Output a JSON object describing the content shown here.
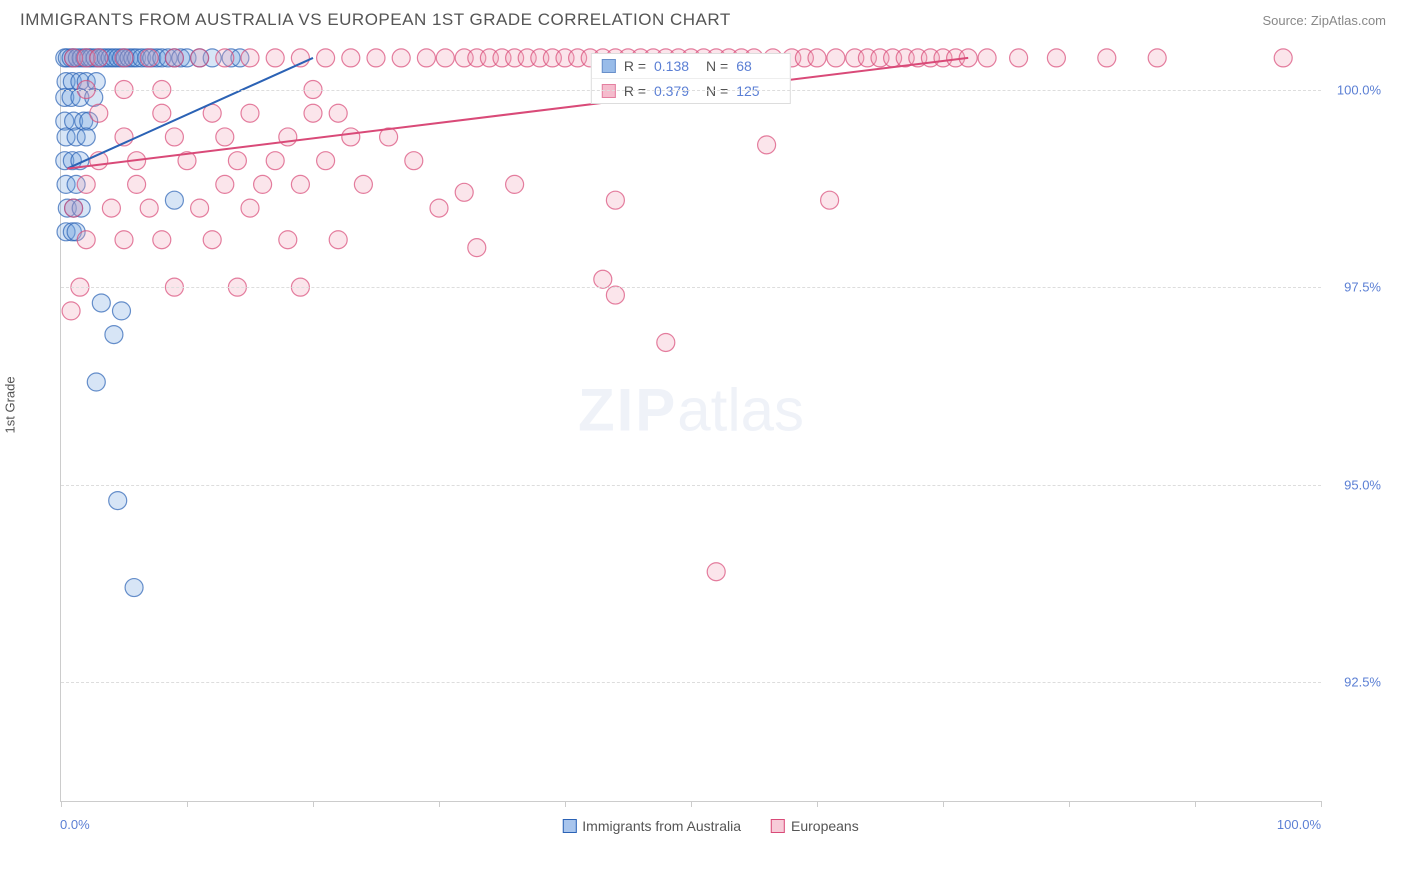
{
  "header": {
    "title": "IMMIGRANTS FROM AUSTRALIA VS EUROPEAN 1ST GRADE CORRELATION CHART",
    "source": "Source: ZipAtlas.com"
  },
  "watermark": {
    "zip": "ZIP",
    "atlas": "atlas"
  },
  "chart": {
    "type": "scatter",
    "ylabel": "1st Grade",
    "background_color": "#ffffff",
    "grid_color": "#dddddd",
    "axis_color": "#cccccc",
    "xlim": [
      0,
      100
    ],
    "ylim": [
      91.0,
      100.5
    ],
    "xtick_positions": [
      0,
      10,
      20,
      30,
      40,
      50,
      60,
      70,
      80,
      90,
      100
    ],
    "xlabel_min": "0.0%",
    "xlabel_max": "100.0%",
    "yticks": [
      {
        "v": 92.5,
        "label": "92.5%"
      },
      {
        "v": 95.0,
        "label": "95.0%"
      },
      {
        "v": 97.5,
        "label": "97.5%"
      },
      {
        "v": 100.0,
        "label": "100.0%"
      }
    ],
    "marker_radius": 9,
    "marker_opacity": 0.28,
    "marker_stroke_width": 1.2,
    "trend_line_width": 2,
    "series": [
      {
        "name": "Immigrants from Australia",
        "fill": "#6fa0e0",
        "stroke": "#2b62b5",
        "R": "0.138",
        "N": "68",
        "trend": {
          "x1": 0.5,
          "y1": 99.0,
          "x2": 20,
          "y2": 100.4
        },
        "points": [
          [
            0.3,
            100.4
          ],
          [
            0.5,
            100.4
          ],
          [
            0.8,
            100.4
          ],
          [
            1.0,
            100.4
          ],
          [
            1.3,
            100.4
          ],
          [
            1.6,
            100.4
          ],
          [
            1.9,
            100.4
          ],
          [
            2.2,
            100.4
          ],
          [
            2.4,
            100.4
          ],
          [
            2.7,
            100.4
          ],
          [
            3.0,
            100.4
          ],
          [
            3.3,
            100.4
          ],
          [
            3.6,
            100.4
          ],
          [
            3.9,
            100.4
          ],
          [
            4.2,
            100.4
          ],
          [
            4.5,
            100.4
          ],
          [
            4.8,
            100.4
          ],
          [
            5.1,
            100.4
          ],
          [
            5.4,
            100.4
          ],
          [
            5.7,
            100.4
          ],
          [
            6.0,
            100.4
          ],
          [
            6.4,
            100.4
          ],
          [
            6.8,
            100.4
          ],
          [
            7.2,
            100.4
          ],
          [
            7.6,
            100.4
          ],
          [
            8.0,
            100.4
          ],
          [
            8.5,
            100.4
          ],
          [
            9.0,
            100.4
          ],
          [
            9.5,
            100.4
          ],
          [
            10.0,
            100.4
          ],
          [
            11.0,
            100.4
          ],
          [
            12.0,
            100.4
          ],
          [
            13.5,
            100.4
          ],
          [
            14.2,
            100.4
          ],
          [
            0.4,
            100.1
          ],
          [
            0.9,
            100.1
          ],
          [
            1.5,
            100.1
          ],
          [
            2.0,
            100.1
          ],
          [
            2.8,
            100.1
          ],
          [
            0.3,
            99.9
          ],
          [
            0.8,
            99.9
          ],
          [
            1.5,
            99.9
          ],
          [
            2.6,
            99.9
          ],
          [
            0.3,
            99.6
          ],
          [
            1.0,
            99.6
          ],
          [
            1.8,
            99.6
          ],
          [
            2.2,
            99.6
          ],
          [
            0.4,
            99.4
          ],
          [
            1.2,
            99.4
          ],
          [
            2.0,
            99.4
          ],
          [
            0.3,
            99.1
          ],
          [
            0.9,
            99.1
          ],
          [
            1.5,
            99.1
          ],
          [
            0.4,
            98.8
          ],
          [
            1.2,
            98.8
          ],
          [
            0.5,
            98.5
          ],
          [
            1.0,
            98.5
          ],
          [
            1.6,
            98.5
          ],
          [
            9.0,
            98.6
          ],
          [
            0.4,
            98.2
          ],
          [
            0.9,
            98.2
          ],
          [
            1.2,
            98.2
          ],
          [
            3.2,
            97.3
          ],
          [
            4.8,
            97.2
          ],
          [
            4.2,
            96.9
          ],
          [
            2.8,
            96.3
          ],
          [
            4.5,
            94.8
          ],
          [
            5.8,
            93.7
          ]
        ]
      },
      {
        "name": "Europeans",
        "fill": "#f2a0b8",
        "stroke": "#d94a78",
        "R": "0.379",
        "N": "125",
        "trend": {
          "x1": 0.5,
          "y1": 99.0,
          "x2": 72,
          "y2": 100.4
        },
        "points": [
          [
            1.0,
            100.4
          ],
          [
            2.0,
            100.4
          ],
          [
            3.0,
            100.4
          ],
          [
            5.0,
            100.4
          ],
          [
            7.0,
            100.4
          ],
          [
            9.0,
            100.4
          ],
          [
            11.0,
            100.4
          ],
          [
            13.0,
            100.4
          ],
          [
            15.0,
            100.4
          ],
          [
            17.0,
            100.4
          ],
          [
            19.0,
            100.4
          ],
          [
            21.0,
            100.4
          ],
          [
            23.0,
            100.4
          ],
          [
            25.0,
            100.4
          ],
          [
            27.0,
            100.4
          ],
          [
            29.0,
            100.4
          ],
          [
            30.5,
            100.4
          ],
          [
            32.0,
            100.4
          ],
          [
            33.0,
            100.4
          ],
          [
            34.0,
            100.4
          ],
          [
            35.0,
            100.4
          ],
          [
            36.0,
            100.4
          ],
          [
            37.0,
            100.4
          ],
          [
            38.0,
            100.4
          ],
          [
            39.0,
            100.4
          ],
          [
            40.0,
            100.4
          ],
          [
            41.0,
            100.4
          ],
          [
            42.0,
            100.4
          ],
          [
            43.0,
            100.4
          ],
          [
            44.0,
            100.4
          ],
          [
            45.0,
            100.4
          ],
          [
            46.0,
            100.4
          ],
          [
            47.0,
            100.4
          ],
          [
            48.0,
            100.4
          ],
          [
            49.0,
            100.4
          ],
          [
            50.0,
            100.4
          ],
          [
            51.0,
            100.4
          ],
          [
            52.0,
            100.4
          ],
          [
            53.0,
            100.4
          ],
          [
            54.0,
            100.4
          ],
          [
            55.0,
            100.4
          ],
          [
            56.5,
            100.4
          ],
          [
            58.0,
            100.4
          ],
          [
            59.0,
            100.4
          ],
          [
            60.0,
            100.4
          ],
          [
            61.5,
            100.4
          ],
          [
            63.0,
            100.4
          ],
          [
            64.0,
            100.4
          ],
          [
            65.0,
            100.4
          ],
          [
            66.0,
            100.4
          ],
          [
            67.0,
            100.4
          ],
          [
            68.0,
            100.4
          ],
          [
            69.0,
            100.4
          ],
          [
            70.0,
            100.4
          ],
          [
            71.0,
            100.4
          ],
          [
            72.0,
            100.4
          ],
          [
            73.5,
            100.4
          ],
          [
            76.0,
            100.4
          ],
          [
            79.0,
            100.4
          ],
          [
            83.0,
            100.4
          ],
          [
            87.0,
            100.4
          ],
          [
            97.0,
            100.4
          ],
          [
            2.0,
            100.0
          ],
          [
            5.0,
            100.0
          ],
          [
            8.0,
            100.0
          ],
          [
            20.0,
            100.0
          ],
          [
            3.0,
            99.7
          ],
          [
            8.0,
            99.7
          ],
          [
            12.0,
            99.7
          ],
          [
            15.0,
            99.7
          ],
          [
            20.0,
            99.7
          ],
          [
            22.0,
            99.7
          ],
          [
            5.0,
            99.4
          ],
          [
            9.0,
            99.4
          ],
          [
            13.0,
            99.4
          ],
          [
            18.0,
            99.4
          ],
          [
            23.0,
            99.4
          ],
          [
            26.0,
            99.4
          ],
          [
            56.0,
            99.3
          ],
          [
            3.0,
            99.1
          ],
          [
            6.0,
            99.1
          ],
          [
            10.0,
            99.1
          ],
          [
            14.0,
            99.1
          ],
          [
            17.0,
            99.1
          ],
          [
            21.0,
            99.1
          ],
          [
            28.0,
            99.1
          ],
          [
            2.0,
            98.8
          ],
          [
            6.0,
            98.8
          ],
          [
            13.0,
            98.8
          ],
          [
            16.0,
            98.8
          ],
          [
            19.0,
            98.8
          ],
          [
            24.0,
            98.8
          ],
          [
            36.0,
            98.8
          ],
          [
            32.0,
            98.7
          ],
          [
            1.0,
            98.5
          ],
          [
            4.0,
            98.5
          ],
          [
            7.0,
            98.5
          ],
          [
            11.0,
            98.5
          ],
          [
            15.0,
            98.5
          ],
          [
            30.0,
            98.5
          ],
          [
            44.0,
            98.6
          ],
          [
            61.0,
            98.6
          ],
          [
            2.0,
            98.1
          ],
          [
            5.0,
            98.1
          ],
          [
            8.0,
            98.1
          ],
          [
            12.0,
            98.1
          ],
          [
            18.0,
            98.1
          ],
          [
            22.0,
            98.1
          ],
          [
            33.0,
            98.0
          ],
          [
            1.5,
            97.5
          ],
          [
            9.0,
            97.5
          ],
          [
            14.0,
            97.5
          ],
          [
            19.0,
            97.5
          ],
          [
            43.0,
            97.6
          ],
          [
            44.0,
            97.4
          ],
          [
            0.8,
            97.2
          ],
          [
            48.0,
            96.8
          ],
          [
            52.0,
            93.9
          ]
        ]
      }
    ],
    "bottom_legend": [
      {
        "label": "Immigrants from Australia",
        "fill": "#a8c5ed",
        "stroke": "#2b62b5"
      },
      {
        "label": "Europeans",
        "fill": "#f7cbd8",
        "stroke": "#d94a78"
      }
    ]
  }
}
